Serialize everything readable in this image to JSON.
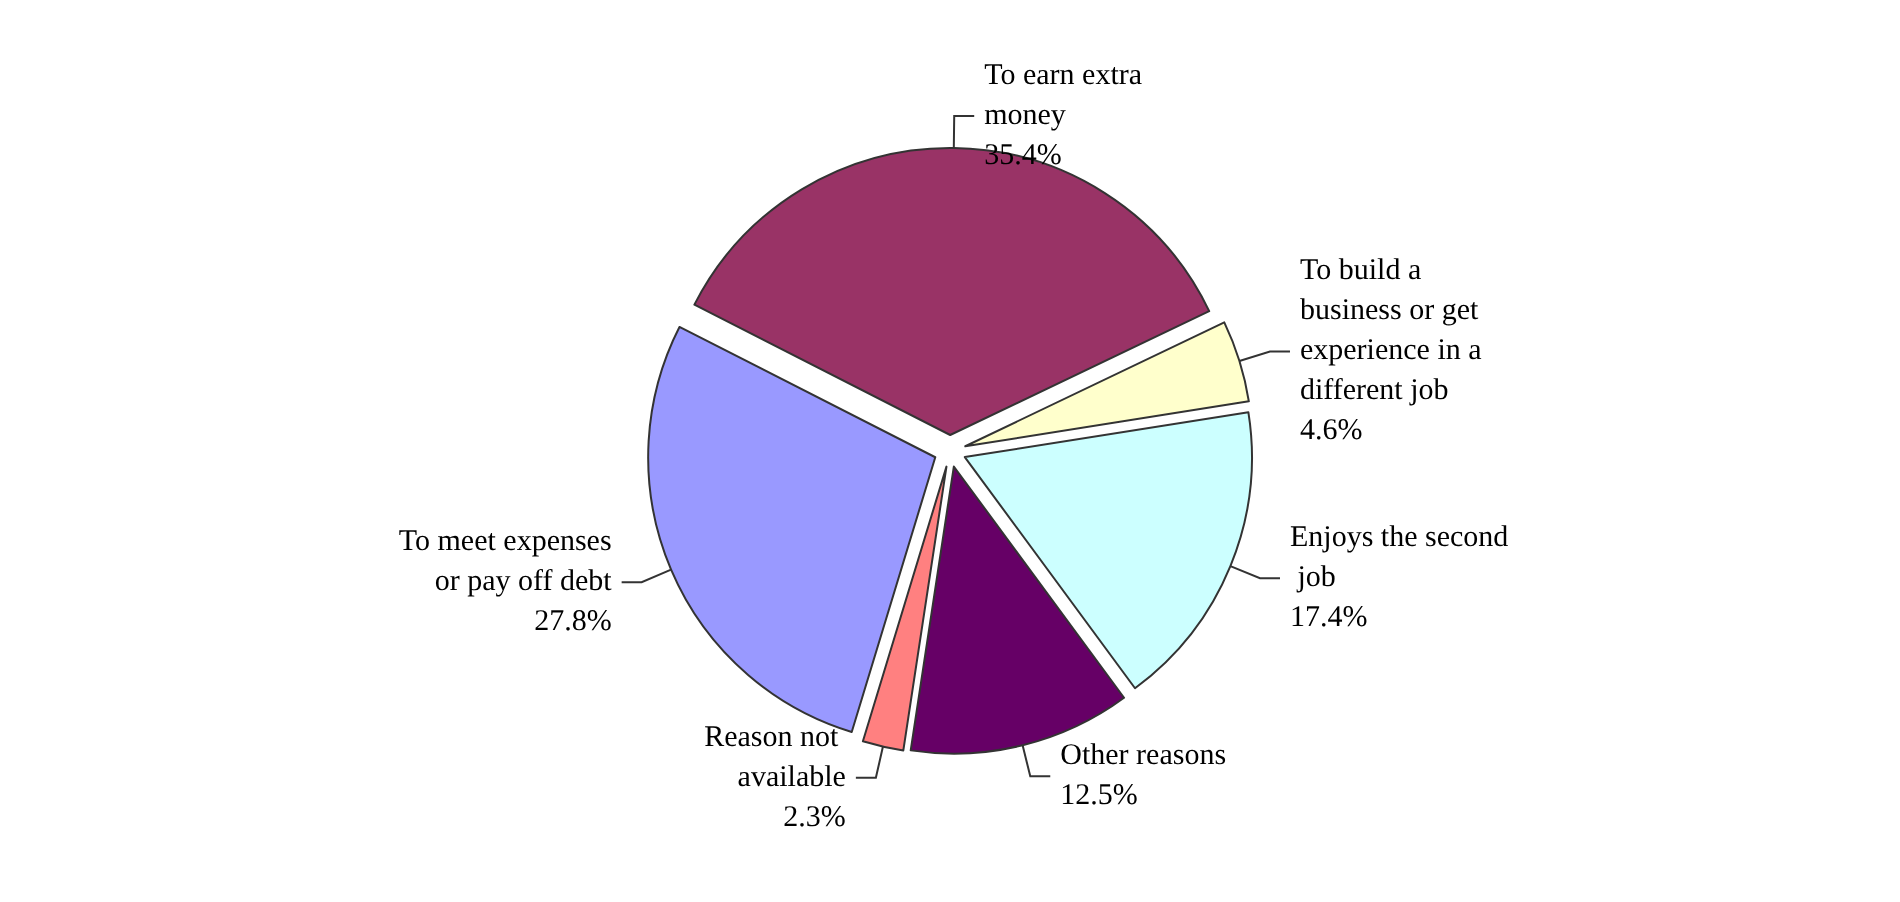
{
  "chart_data": {
    "type": "pie",
    "categories": [
      "To earn extra money",
      "To build a business or get experience in a different job",
      "Enjoys the second job",
      "Other reasons",
      "Reason not available",
      "To meet expenses or pay off debt"
    ],
    "values": [
      35.4,
      4.6,
      17.4,
      12.5,
      2.3,
      27.8
    ],
    "value_labels": [
      "35.4%",
      "4.6%",
      "17.4%",
      "12.5%",
      "2.3%",
      "27.8%"
    ],
    "colors": [
      "#993366",
      "#ffffcc",
      "#ccffff",
      "#660066",
      "#ff8080",
      "#9999ff"
    ],
    "legend": false
  }
}
